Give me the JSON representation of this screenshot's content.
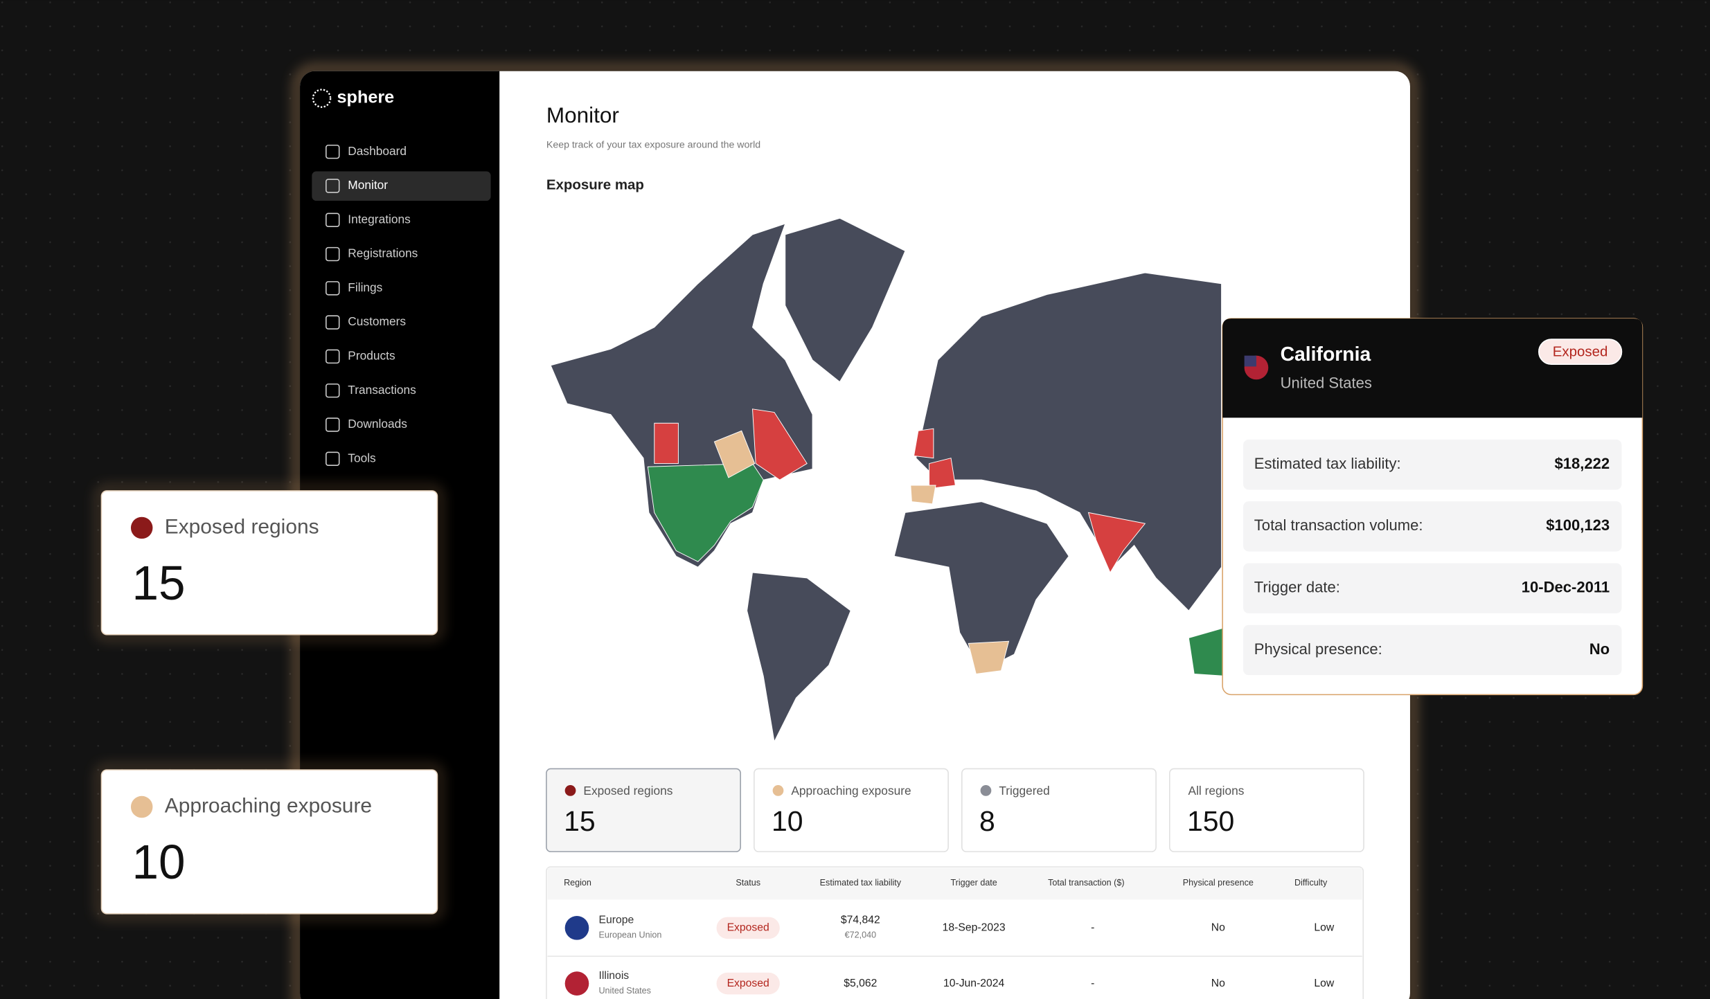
{
  "brand": "sphere",
  "nav": [
    "Dashboard",
    "Monitor",
    "Integrations",
    "Registrations",
    "Filings",
    "Customers",
    "Products",
    "Transactions",
    "Downloads",
    "Tools"
  ],
  "header": {
    "title": "Monitor",
    "subtitle": "Keep track of your tax exposure around the world"
  },
  "map": {
    "title": "Exposure map"
  },
  "stats": [
    {
      "label": "Exposed regions",
      "value": "15"
    },
    {
      "label": "Approaching exposure",
      "value": "10"
    },
    {
      "label": "Triggered",
      "value": "8"
    },
    {
      "label": "All regions",
      "value": "150"
    }
  ],
  "table": {
    "columns": [
      "Region",
      "Status",
      "Estimated tax liability",
      "Trigger date",
      "Total transaction  ($)",
      "Physical presence",
      "Difficulty"
    ],
    "rows": [
      {
        "region": "Europe",
        "country": "European Union",
        "status": "Exposed",
        "liability": "$74,842",
        "liability_local": "€72,040",
        "trigger": "18-Sep-2023",
        "total": "-",
        "presence": "No",
        "difficulty": "Low"
      },
      {
        "region": "Illinois",
        "country": "United States",
        "status": "Exposed",
        "liability": "$5,062",
        "trigger": "10-Jun-2024",
        "total": "-",
        "presence": "No",
        "difficulty": "Low"
      }
    ]
  },
  "popup": {
    "title": "California",
    "subtitle": "United States",
    "status": "Exposed",
    "fields": [
      {
        "label": "Estimated tax liability:",
        "value": "$18,222"
      },
      {
        "label": "Total transaction volume:",
        "value": "$100,123"
      },
      {
        "label": "Trigger date:",
        "value": "10-Dec-2011"
      },
      {
        "label": "Physical presence:",
        "value": "No"
      }
    ]
  },
  "floating": [
    {
      "label": "Exposed regions",
      "value": "15"
    },
    {
      "label": "Approaching exposure",
      "value": "10"
    }
  ]
}
